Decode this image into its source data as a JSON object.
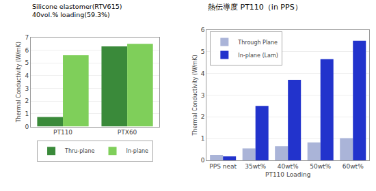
{
  "chart_data": [
    {
      "type": "bar",
      "title": "Silicone elastomer(RTV615)",
      "subtitle": "40vol.% loading(59.3%)",
      "categories": [
        "PT110",
        "PTX60"
      ],
      "series": [
        {
          "name": "Thru-plane",
          "color": "#3a8a3a",
          "values": [
            0.75,
            6.3
          ]
        },
        {
          "name": "In-plane",
          "color": "#7fcf5a",
          "values": [
            5.6,
            6.5
          ]
        }
      ],
      "ylabel": "Thermal Conductivity (W/mK)",
      "ylim": [
        0,
        7.0
      ],
      "yticks": [
        0,
        1,
        2,
        3,
        4,
        5,
        6,
        7
      ],
      "grid": true,
      "legend": "bottom"
    },
    {
      "type": "bar",
      "title": "熱伝導度 PT110（in PPS）",
      "categories": [
        "PPS neat",
        "35wt%",
        "40wt%",
        "50wt%",
        "60wt%"
      ],
      "series": [
        {
          "name": "Through Plane",
          "color": "#aab4d8",
          "values": [
            0.25,
            0.55,
            0.65,
            0.82,
            1.02
          ]
        },
        {
          "name": "In-plane (Lam)",
          "color": "#2233cc",
          "values": [
            0.18,
            2.5,
            3.7,
            4.65,
            5.5
          ]
        }
      ],
      "ylabel": "Thermal Conductivity (W/mK)",
      "xlabel": "PT110 Loading",
      "ylim": [
        0,
        6
      ],
      "yticks": [
        0,
        1,
        2,
        3,
        4,
        5,
        6
      ],
      "grid": true,
      "legend": "upper left"
    }
  ]
}
